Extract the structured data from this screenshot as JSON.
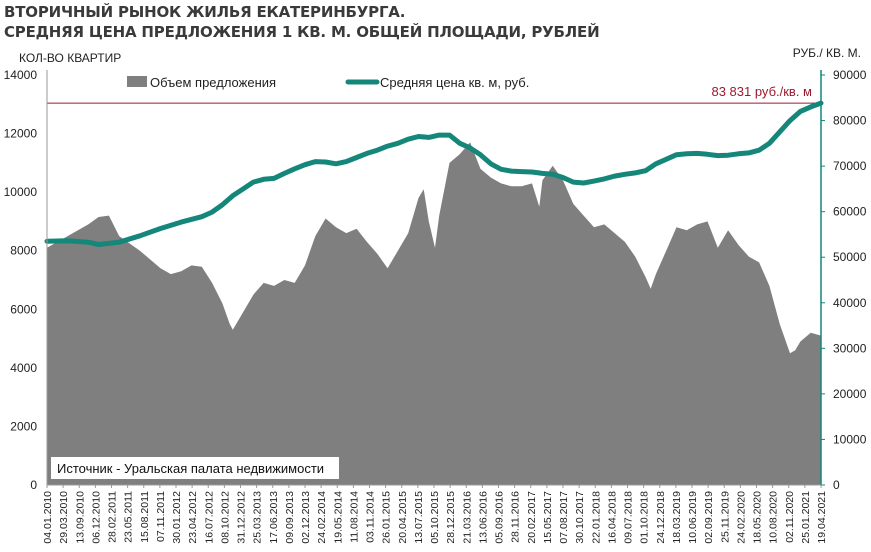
{
  "chart_data": {
    "type": "area+line",
    "title_line1": "ВТОРИЧНЫЙ РЫНОК ЖИЛЬЯ ЕКАТЕРИНБУРГА.",
    "title_line2": "СРЕДНЯЯ ЦЕНА ПРЕДЛОЖЕНИЯ 1 КВ. М. ОБЩЕЙ ПЛОЩАДИ, РУБЛЕЙ",
    "y_left_label": "КОЛ-ВО КВАРТИР",
    "y_right_label": "РУБ./ КВ. М.",
    "y_left_range": [
      0,
      14000
    ],
    "y_right_range": [
      0,
      90000
    ],
    "y_left_ticks": [
      "0",
      "2000",
      "4000",
      "6000",
      "8000",
      "10000",
      "12000",
      "14000"
    ],
    "y_right_ticks": [
      "0",
      "10000",
      "20000",
      "30000",
      "40000",
      "50000",
      "60000",
      "70000",
      "80000",
      "90000"
    ],
    "x_tick_labels": [
      "04.01.2010",
      "29.03.2010",
      "13.09.2010",
      "06.12.2010",
      "28.02.2011",
      "23.05.2011",
      "15.08.2011",
      "07.11.2011",
      "30.01.2012",
      "23.04.2012",
      "16.07.2012",
      "08.10.2012",
      "31.12.2012",
      "25.03.2013",
      "17.06.2013",
      "09.09.2013",
      "02.12.2013",
      "24.02.2014",
      "19.05.2014",
      "11.08.2014",
      "03.11.2014",
      "26.01.2015",
      "20.04.2015",
      "13.07.2015",
      "05.10.2015",
      "28.12.2015",
      "21.03.2016",
      "13.06.2016",
      "05.09.2016",
      "28.11.2016",
      "20.02.2017",
      "15.05.2017",
      "07.08.2017",
      "30.10.2017",
      "22.01.2018",
      "16.04.2018",
      "09.07.2018",
      "01.10.2018",
      "24.12.2018",
      "18.03.2019",
      "10.06.2019",
      "02.09.2019",
      "25.11.2019",
      "24.02.2020",
      "18.05.2020",
      "10.08.2020",
      "02.11.2020",
      "25.01.2021",
      "19.04.2021"
    ],
    "legend": {
      "volume": "Объем предложения",
      "price": "Средняя цена кв. м, руб."
    },
    "legend_position": "top-left",
    "reference_line": {
      "value": 83831,
      "label": "83 831 руб./кв. м"
    },
    "source_note": "Источник - Уральская палата недвижимости",
    "grid": false,
    "colors": {
      "volume": "#7f7f7f",
      "price": "#14877a",
      "reference": "#9a1b2f"
    },
    "series": [
      {
        "name": "Объем предложения",
        "axis": "left",
        "points": [
          [
            0,
            8100
          ],
          [
            2,
            8500
          ],
          [
            4,
            8900
          ],
          [
            5,
            9150
          ],
          [
            6,
            9200
          ],
          [
            7,
            8500
          ],
          [
            9,
            8000
          ],
          [
            11,
            7400
          ],
          [
            12,
            7200
          ],
          [
            13,
            7300
          ],
          [
            14,
            7500
          ],
          [
            15,
            7450
          ],
          [
            16,
            6900
          ],
          [
            17,
            6200
          ],
          [
            17.7,
            5500
          ],
          [
            18,
            5300
          ],
          [
            19,
            5900
          ],
          [
            20,
            6500
          ],
          [
            21,
            6900
          ],
          [
            22,
            6800
          ],
          [
            23,
            7000
          ],
          [
            24,
            6900
          ],
          [
            25,
            7500
          ],
          [
            26,
            8500
          ],
          [
            27,
            9100
          ],
          [
            28,
            8800
          ],
          [
            29,
            8600
          ],
          [
            30,
            8750
          ],
          [
            31,
            8300
          ],
          [
            32,
            7900
          ],
          [
            33,
            7400
          ],
          [
            34,
            8000
          ],
          [
            35,
            8600
          ],
          [
            36,
            9800
          ],
          [
            36.5,
            10100
          ],
          [
            37,
            9000
          ],
          [
            37.6,
            8100
          ],
          [
            38,
            9200
          ],
          [
            39,
            11000
          ],
          [
            40,
            11300
          ],
          [
            41,
            11700
          ],
          [
            42,
            10800
          ],
          [
            43,
            10500
          ],
          [
            44,
            10300
          ],
          [
            45,
            10200
          ],
          [
            46,
            10200
          ],
          [
            47,
            10300
          ],
          [
            47.7,
            9500
          ],
          [
            48,
            10400
          ],
          [
            49,
            10900
          ],
          [
            50,
            10400
          ],
          [
            51,
            9600
          ],
          [
            52,
            9200
          ],
          [
            53,
            8800
          ],
          [
            54,
            8900
          ],
          [
            55,
            8600
          ],
          [
            56,
            8300
          ],
          [
            57,
            7800
          ],
          [
            58,
            7100
          ],
          [
            58.5,
            6700
          ],
          [
            59,
            7200
          ],
          [
            60,
            8000
          ],
          [
            61,
            8800
          ],
          [
            62,
            8700
          ],
          [
            63,
            8900
          ],
          [
            64,
            9000
          ],
          [
            65,
            8100
          ],
          [
            66,
            8700
          ],
          [
            67,
            8200
          ],
          [
            68,
            7800
          ],
          [
            69,
            7600
          ],
          [
            70,
            6800
          ],
          [
            71,
            5500
          ],
          [
            72,
            4500
          ],
          [
            72.5,
            4600
          ],
          [
            73,
            4900
          ],
          [
            74,
            5200
          ],
          [
            75,
            5100
          ]
        ]
      },
      {
        "name": "Средняя цена кв. м, руб.",
        "axis": "right",
        "points": [
          [
            0,
            53500
          ],
          [
            2,
            53600
          ],
          [
            4,
            53300
          ],
          [
            5,
            52800
          ],
          [
            7,
            53300
          ],
          [
            9,
            54700
          ],
          [
            11,
            56300
          ],
          [
            13,
            57700
          ],
          [
            15,
            58900
          ],
          [
            16,
            59900
          ],
          [
            17,
            61500
          ],
          [
            18,
            63500
          ],
          [
            19,
            65000
          ],
          [
            20,
            66500
          ],
          [
            21,
            67100
          ],
          [
            22,
            67300
          ],
          [
            23,
            68400
          ],
          [
            24,
            69400
          ],
          [
            25,
            70300
          ],
          [
            26,
            71000
          ],
          [
            27,
            70900
          ],
          [
            28,
            70500
          ],
          [
            29,
            71000
          ],
          [
            30,
            71900
          ],
          [
            31,
            72800
          ],
          [
            32,
            73500
          ],
          [
            33,
            74400
          ],
          [
            34,
            75000
          ],
          [
            35,
            75900
          ],
          [
            36,
            76500
          ],
          [
            37,
            76300
          ],
          [
            38,
            76800
          ],
          [
            39,
            76800
          ],
          [
            40,
            75000
          ],
          [
            41,
            74000
          ],
          [
            42,
            72500
          ],
          [
            43,
            70500
          ],
          [
            44,
            69300
          ],
          [
            45,
            68900
          ],
          [
            46,
            68800
          ],
          [
            47,
            68700
          ],
          [
            48,
            68400
          ],
          [
            49,
            68200
          ],
          [
            50,
            67500
          ],
          [
            51,
            66500
          ],
          [
            52,
            66300
          ],
          [
            53,
            66700
          ],
          [
            54,
            67200
          ],
          [
            55,
            67800
          ],
          [
            56,
            68200
          ],
          [
            57,
            68500
          ],
          [
            58,
            69000
          ],
          [
            59,
            70500
          ],
          [
            60,
            71500
          ],
          [
            61,
            72500
          ],
          [
            62,
            72700
          ],
          [
            63,
            72800
          ],
          [
            64,
            72600
          ],
          [
            65,
            72300
          ],
          [
            66,
            72400
          ],
          [
            67,
            72700
          ],
          [
            68,
            72900
          ],
          [
            69,
            73500
          ],
          [
            70,
            75000
          ],
          [
            71,
            77500
          ],
          [
            72,
            80000
          ],
          [
            73,
            82000
          ],
          [
            74,
            83000
          ],
          [
            75,
            83831
          ]
        ]
      }
    ]
  }
}
